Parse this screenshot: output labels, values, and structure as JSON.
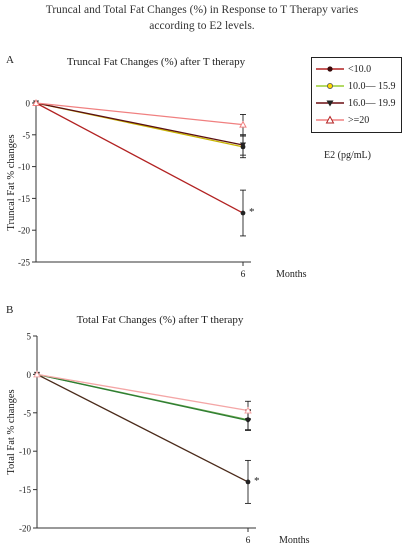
{
  "page": {
    "title_line1": "Truncal and Total Fat Changes (%) in Response to T Therapy varies",
    "title_line2": "according to E2 levels."
  },
  "legend": {
    "unit": "E2 (pg/mL)",
    "entries": [
      {
        "label": "<10.0",
        "color": "#b22222",
        "marker": "circle"
      },
      {
        "label": "10.0— 15.9",
        "color": "#9acd32",
        "marker": "circle"
      },
      {
        "label": "16.0— 19.9",
        "color": "#6b0f12",
        "marker": "triangle-down"
      },
      {
        "label": ">=20",
        "color": "#f08080",
        "marker": "triangle-up"
      }
    ]
  },
  "chart_data": [
    {
      "panel": "A",
      "type": "line",
      "title": "Truncal Fat Changes (%) after T therapy",
      "ylabel": "Truncal Fat % changes",
      "xlabel": "Months",
      "x": [
        0,
        6
      ],
      "x_tick_labels": [
        "6"
      ],
      "ylim": [
        -25,
        0
      ],
      "y_ticks": [
        0,
        -5,
        -10,
        -15,
        -20,
        -25
      ],
      "significance_marker": "*",
      "series": [
        {
          "name": "<10.0",
          "color": "#b22222",
          "marker": "circle",
          "values": [
            0,
            -17.3
          ],
          "error": [
            0,
            3.6
          ]
        },
        {
          "name": "10.0— 15.9",
          "color": "#c8b400",
          "marker": "circle",
          "values": [
            0,
            -6.9
          ],
          "error": [
            0,
            1.7
          ]
        },
        {
          "name": "16.0— 19.9",
          "color": "#5a0f12",
          "marker": "triangle-down",
          "values": [
            0,
            -6.6
          ],
          "error": [
            0,
            1.6
          ]
        },
        {
          "name": ">=20",
          "color": "#f08080",
          "marker": "triangle-up",
          "values": [
            0,
            -3.4
          ],
          "error": [
            0,
            1.6
          ]
        }
      ]
    },
    {
      "panel": "B",
      "type": "line",
      "title": "Total Fat Changes (%) after T therapy",
      "ylabel": "Total Fat % changes",
      "xlabel": "Months",
      "x": [
        0,
        6
      ],
      "x_tick_labels": [
        "6"
      ],
      "ylim": [
        -20,
        5
      ],
      "y_ticks": [
        5,
        0,
        -5,
        -10,
        -15,
        -20
      ],
      "significance_marker": "*",
      "series": [
        {
          "name": "<10.0",
          "color": "#4a2a1a",
          "marker": "circle",
          "values": [
            0,
            -14.0
          ],
          "error": [
            0,
            2.8
          ]
        },
        {
          "name": "10.0— 15.9",
          "color": "#6aa84f",
          "marker": "circle",
          "values": [
            0,
            -5.9
          ],
          "error": [
            0,
            1.3
          ]
        },
        {
          "name": "16.0— 19.9",
          "color": "#2e7d32",
          "marker": "triangle-down",
          "values": [
            0,
            -6.0
          ],
          "error": [
            0,
            1.3
          ]
        },
        {
          "name": ">=20",
          "color": "#f4a6a6",
          "marker": "triangle-up",
          "values": [
            0,
            -4.7
          ],
          "error": [
            0,
            1.2
          ]
        }
      ]
    }
  ]
}
